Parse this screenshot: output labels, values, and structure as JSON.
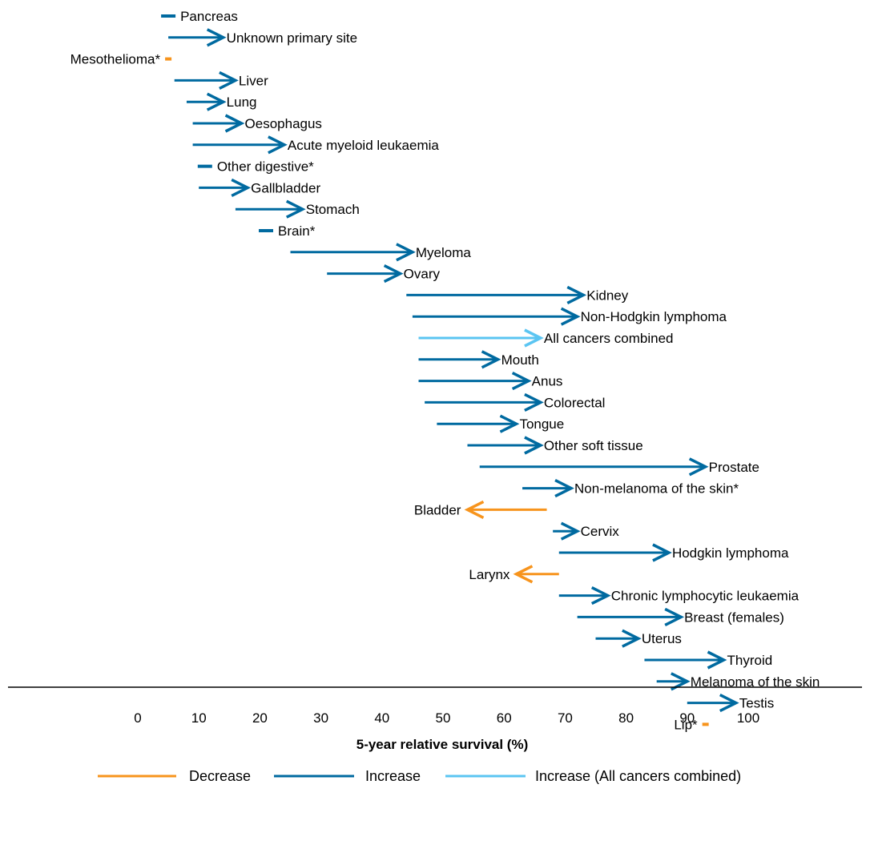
{
  "chart_data": {
    "type": "arrow",
    "xlabel": "5-year relative survival (%)",
    "xlim": [
      0,
      100
    ],
    "xticks": [
      0,
      10,
      20,
      30,
      40,
      50,
      60,
      70,
      80,
      90,
      100
    ],
    "series": [
      {
        "key": "decrease",
        "name": "Decrease",
        "color": "#f7941d"
      },
      {
        "key": "increase",
        "name": "Increase",
        "color": "#006aa0"
      },
      {
        "key": "all",
        "name": "Increase (All cancers combined)",
        "color": "#5bc5f2"
      }
    ],
    "rows": [
      {
        "label": "Pancreas",
        "start": 4,
        "end": 6,
        "series": "increase",
        "marker": "dash"
      },
      {
        "label": "Unknown primary site",
        "start": 5,
        "end": 14,
        "series": "increase"
      },
      {
        "label": "Mesothelioma*",
        "start": 5,
        "end": 5,
        "series": "decrease",
        "marker": "dash"
      },
      {
        "label": "Liver",
        "start": 6,
        "end": 16,
        "series": "increase"
      },
      {
        "label": "Lung",
        "start": 8,
        "end": 14,
        "series": "increase"
      },
      {
        "label": "Oesophagus",
        "start": 9,
        "end": 17,
        "series": "increase"
      },
      {
        "label": "Acute myeloid leukaemia",
        "start": 9,
        "end": 24,
        "series": "increase"
      },
      {
        "label": "Other digestive*",
        "start": 11,
        "end": 11,
        "series": "increase",
        "marker": "dash"
      },
      {
        "label": "Gallbladder",
        "start": 10,
        "end": 18,
        "series": "increase"
      },
      {
        "label": "Stomach",
        "start": 16,
        "end": 27,
        "series": "increase"
      },
      {
        "label": "Brain*",
        "start": 21,
        "end": 21,
        "series": "increase",
        "marker": "dash"
      },
      {
        "label": "Myeloma",
        "start": 25,
        "end": 45,
        "series": "increase"
      },
      {
        "label": "Ovary",
        "start": 31,
        "end": 43,
        "series": "increase"
      },
      {
        "label": "Kidney",
        "start": 44,
        "end": 73,
        "series": "increase"
      },
      {
        "label": "Non-Hodgkin lymphoma",
        "start": 45,
        "end": 72,
        "series": "increase"
      },
      {
        "label": "All cancers combined",
        "start": 46,
        "end": 66,
        "series": "all"
      },
      {
        "label": "Mouth",
        "start": 46,
        "end": 59,
        "series": "increase"
      },
      {
        "label": "Anus",
        "start": 46,
        "end": 64,
        "series": "increase"
      },
      {
        "label": "Colorectal",
        "start": 47,
        "end": 66,
        "series": "increase"
      },
      {
        "label": "Tongue",
        "start": 49,
        "end": 62,
        "series": "increase"
      },
      {
        "label": "Other soft tissue",
        "start": 54,
        "end": 66,
        "series": "increase"
      },
      {
        "label": "Prostate",
        "start": 56,
        "end": 93,
        "series": "increase"
      },
      {
        "label": "Non-melanoma of the skin*",
        "start": 63,
        "end": 71,
        "series": "increase"
      },
      {
        "label": "Bladder",
        "start": 67,
        "end": 54,
        "series": "decrease"
      },
      {
        "label": "Cervix",
        "start": 68,
        "end": 72,
        "series": "increase"
      },
      {
        "label": "Hodgkin lymphoma",
        "start": 69,
        "end": 87,
        "series": "increase"
      },
      {
        "label": "Larynx",
        "start": 69,
        "end": 62,
        "series": "decrease"
      },
      {
        "label": "Chronic lymphocytic leukaemia",
        "start": 69,
        "end": 77,
        "series": "increase"
      },
      {
        "label": "Breast (females)",
        "start": 72,
        "end": 89,
        "series": "increase"
      },
      {
        "label": "Uterus",
        "start": 75,
        "end": 82,
        "series": "increase"
      },
      {
        "label": "Thyroid",
        "start": 83,
        "end": 96,
        "series": "increase"
      },
      {
        "label": "Melanoma of the skin",
        "start": 85,
        "end": 90,
        "series": "increase"
      },
      {
        "label": "Testis",
        "start": 90,
        "end": 98,
        "series": "increase"
      },
      {
        "label": "Lip*",
        "start": 93,
        "end": 93,
        "series": "decrease",
        "marker": "dash"
      }
    ]
  }
}
